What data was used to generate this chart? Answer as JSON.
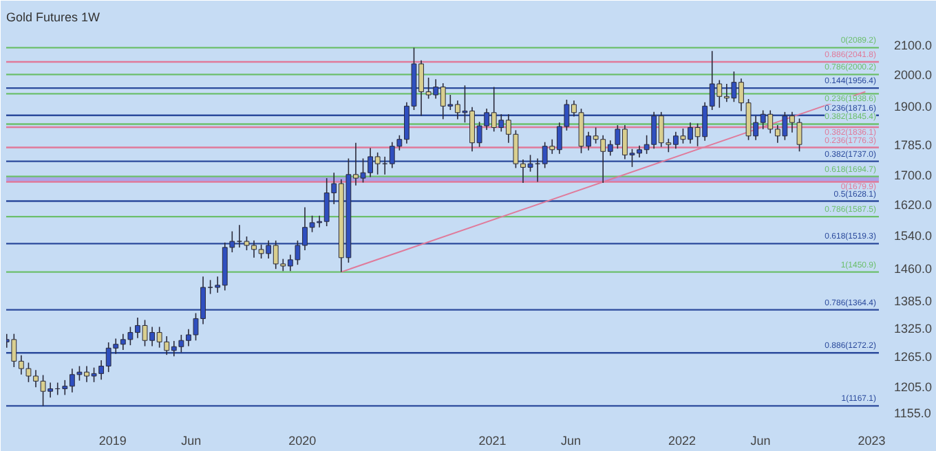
{
  "chart_data": {
    "type": "candlestick",
    "title": "Gold Futures 1W",
    "x": [
      "2018-06-11",
      "2018-06-25",
      "2018-07-09",
      "2018-07-23",
      "2018-08-06",
      "2018-08-20",
      "2018-09-03",
      "2018-09-17",
      "2018-10-01",
      "2018-10-15",
      "2018-10-29",
      "2018-11-12",
      "2018-11-26",
      "2018-12-10",
      "2018-12-24",
      "2019-01-07",
      "2019-01-21",
      "2019-02-04",
      "2019-02-18",
      "2019-03-04",
      "2019-03-18",
      "2019-04-01",
      "2019-04-15",
      "2019-04-29",
      "2019-05-13",
      "2019-05-27",
      "2019-06-10",
      "2019-06-24",
      "2019-07-08",
      "2019-07-22",
      "2019-08-05",
      "2019-08-19",
      "2019-09-02",
      "2019-09-16",
      "2019-09-30",
      "2019-10-14",
      "2019-10-28",
      "2019-11-11",
      "2019-11-25",
      "2019-12-09",
      "2019-12-23",
      "2020-01-06",
      "2020-01-20",
      "2020-02-03",
      "2020-02-17",
      "2020-03-02",
      "2020-03-16",
      "2020-03-30",
      "2020-04-13",
      "2020-04-27",
      "2020-05-11",
      "2020-05-25",
      "2020-06-08",
      "2020-06-22",
      "2020-07-06",
      "2020-07-20",
      "2020-08-03",
      "2020-08-17",
      "2020-08-31",
      "2020-09-14",
      "2020-09-28",
      "2020-10-12",
      "2020-10-26",
      "2020-11-09",
      "2020-11-23",
      "2020-12-07",
      "2020-12-21",
      "2021-01-04",
      "2021-01-18",
      "2021-02-01",
      "2021-02-15",
      "2021-03-01",
      "2021-03-15",
      "2021-03-29",
      "2021-04-12",
      "2021-04-26",
      "2021-05-10",
      "2021-05-24",
      "2021-06-07",
      "2021-06-21",
      "2021-07-05",
      "2021-07-19",
      "2021-08-02",
      "2021-08-16",
      "2021-08-30",
      "2021-09-13",
      "2021-09-27",
      "2021-10-11",
      "2021-10-25",
      "2021-11-08",
      "2021-11-22",
      "2021-12-06",
      "2021-12-20",
      "2022-01-03",
      "2022-01-17",
      "2022-01-31",
      "2022-02-14",
      "2022-02-28",
      "2022-03-14",
      "2022-03-28",
      "2022-04-11",
      "2022-04-25",
      "2022-05-09",
      "2022-05-23",
      "2022-06-06",
      "2022-06-20",
      "2022-07-04",
      "2022-07-18",
      "2022-08-01",
      "2022-08-15"
    ],
    "ohlc": [
      [
        1295,
        1312,
        1283,
        1300
      ],
      [
        1300,
        1312,
        1243,
        1255
      ],
      [
        1255,
        1267,
        1228,
        1240
      ],
      [
        1240,
        1252,
        1213,
        1225
      ],
      [
        1225,
        1237,
        1203,
        1215
      ],
      [
        1215,
        1227,
        1167.1,
        1195
      ],
      [
        1195,
        1212,
        1183,
        1200
      ],
      [
        1200,
        1212,
        1188,
        1200
      ],
      [
        1200,
        1217,
        1188,
        1205
      ],
      [
        1205,
        1240,
        1193,
        1228
      ],
      [
        1228,
        1245,
        1216,
        1233
      ],
      [
        1233,
        1245,
        1213,
        1225
      ],
      [
        1225,
        1242,
        1213,
        1230
      ],
      [
        1230,
        1257,
        1218,
        1245
      ],
      [
        1245,
        1294,
        1233,
        1282
      ],
      [
        1282,
        1302,
        1270,
        1290
      ],
      [
        1290,
        1312,
        1278,
        1300
      ],
      [
        1300,
        1327,
        1288,
        1315
      ],
      [
        1315,
        1347,
        1303,
        1330
      ],
      [
        1330,
        1342,
        1286,
        1298
      ],
      [
        1298,
        1327,
        1286,
        1315
      ],
      [
        1315,
        1327,
        1283,
        1295
      ],
      [
        1295,
        1307,
        1268,
        1277
      ],
      [
        1277,
        1297,
        1265,
        1285
      ],
      [
        1285,
        1310,
        1273,
        1298
      ],
      [
        1298,
        1322,
        1286,
        1310
      ],
      [
        1310,
        1357,
        1298,
        1345
      ],
      [
        1345,
        1440,
        1333,
        1415
      ],
      [
        1415,
        1432,
        1400,
        1415
      ],
      [
        1415,
        1440,
        1403,
        1420
      ],
      [
        1420,
        1522,
        1408,
        1510
      ],
      [
        1510,
        1550,
        1498,
        1525
      ],
      [
        1525,
        1566,
        1510,
        1525
      ],
      [
        1525,
        1537,
        1503,
        1515
      ],
      [
        1515,
        1527,
        1485,
        1505
      ],
      [
        1505,
        1517,
        1483,
        1495
      ],
      [
        1495,
        1527,
        1483,
        1515
      ],
      [
        1515,
        1527,
        1458,
        1470
      ],
      [
        1470,
        1482,
        1453,
        1465
      ],
      [
        1465,
        1492,
        1453,
        1480
      ],
      [
        1480,
        1527,
        1468,
        1515
      ],
      [
        1515,
        1612,
        1503,
        1560
      ],
      [
        1560,
        1590,
        1548,
        1572
      ],
      [
        1572,
        1590,
        1560,
        1575
      ],
      [
        1575,
        1690,
        1563,
        1650
      ],
      [
        1650,
        1705,
        1620,
        1675
      ],
      [
        1675,
        1687,
        1450.9,
        1485
      ],
      [
        1485,
        1745,
        1473,
        1700
      ],
      [
        1700,
        1790,
        1670,
        1690
      ],
      [
        1690,
        1745,
        1678,
        1705
      ],
      [
        1705,
        1775,
        1693,
        1750
      ],
      [
        1750,
        1762,
        1700,
        1730
      ],
      [
        1730,
        1750,
        1700,
        1730
      ],
      [
        1730,
        1792,
        1718,
        1780
      ],
      [
        1780,
        1812,
        1768,
        1800
      ],
      [
        1800,
        1912,
        1788,
        1900
      ],
      [
        1900,
        2089.2,
        1888,
        2035
      ],
      [
        2035,
        2047,
        1870,
        1945
      ],
      [
        1945,
        1990,
        1923,
        1935
      ],
      [
        1935,
        1985,
        1923,
        1960
      ],
      [
        1960,
        1972,
        1860,
        1900
      ],
      [
        1900,
        1935,
        1888,
        1905
      ],
      [
        1905,
        1917,
        1860,
        1880
      ],
      [
        1880,
        1965,
        1850,
        1885
      ],
      [
        1885,
        1897,
        1765,
        1790
      ],
      [
        1790,
        1852,
        1778,
        1840
      ],
      [
        1840,
        1892,
        1828,
        1880
      ],
      [
        1880,
        1960,
        1823,
        1835
      ],
      [
        1835,
        1875,
        1823,
        1857
      ],
      [
        1857,
        1875,
        1790,
        1815
      ],
      [
        1815,
        1827,
        1718,
        1730
      ],
      [
        1730,
        1742,
        1676.9,
        1720
      ],
      [
        1720,
        1755,
        1708,
        1730
      ],
      [
        1730,
        1745,
        1680,
        1730
      ],
      [
        1730,
        1792,
        1718,
        1780
      ],
      [
        1780,
        1800,
        1758,
        1770
      ],
      [
        1770,
        1850,
        1758,
        1838
      ],
      [
        1838,
        1920,
        1826,
        1905
      ],
      [
        1905,
        1917,
        1868,
        1880
      ],
      [
        1880,
        1892,
        1760,
        1780
      ],
      [
        1780,
        1822,
        1768,
        1810
      ],
      [
        1810,
        1835,
        1788,
        1800
      ],
      [
        1800,
        1812,
        1677,
        1765
      ],
      [
        1765,
        1797,
        1753,
        1785
      ],
      [
        1785,
        1842,
        1773,
        1830
      ],
      [
        1830,
        1842,
        1743,
        1755
      ],
      [
        1755,
        1772,
        1721,
        1760
      ],
      [
        1760,
        1782,
        1748,
        1770
      ],
      [
        1770,
        1812,
        1758,
        1785
      ],
      [
        1785,
        1882,
        1773,
        1870
      ],
      [
        1870,
        1882,
        1778,
        1790
      ],
      [
        1790,
        1802,
        1763,
        1785
      ],
      [
        1785,
        1822,
        1773,
        1810
      ],
      [
        1810,
        1832,
        1788,
        1800
      ],
      [
        1800,
        1850,
        1788,
        1835
      ],
      [
        1835,
        1847,
        1780,
        1808
      ],
      [
        1808,
        1912,
        1796,
        1900
      ],
      [
        1900,
        2078,
        1888,
        1970
      ],
      [
        1970,
        1982,
        1895,
        1930
      ],
      [
        1930,
        1970,
        1913,
        1925
      ],
      [
        1925,
        2010,
        1913,
        1975
      ],
      [
        1975,
        1987,
        1885,
        1910
      ],
      [
        1910,
        1922,
        1798,
        1810
      ],
      [
        1810,
        1870,
        1798,
        1850
      ],
      [
        1850,
        1887,
        1830,
        1875
      ],
      [
        1875,
        1887,
        1818,
        1830
      ],
      [
        1830,
        1842,
        1790,
        1810
      ],
      [
        1810,
        1882,
        1798,
        1870
      ],
      [
        1870,
        1882,
        1820,
        1850
      ],
      [
        1850,
        1862,
        1765,
        1785
      ]
    ],
    "series": [
      {
        "type": "line",
        "color": "#e07a9a",
        "x": [
          "2020-03-16",
          "2022-12-20"
        ],
        "values": [
          1450.9,
          1945
        ]
      }
    ],
    "log": true,
    "xlim": [
      "2018-06-10",
      "2023-01-15"
    ],
    "xticks": [
      {
        "value": "2019-01-01",
        "label": "2019"
      },
      {
        "value": "2019-06-01",
        "label": "Jun"
      },
      {
        "value": "2020-01-01",
        "label": "2020"
      },
      {
        "value": "2021-01-01",
        "label": "2021"
      },
      {
        "value": "2021-06-01",
        "label": "Jun"
      },
      {
        "value": "2022-01-01",
        "label": "2022"
      },
      {
        "value": "2022-06-01",
        "label": "Jun"
      },
      {
        "value": "2023-01-01",
        "label": "2023"
      }
    ],
    "ylim": [
      1143,
      2147
    ],
    "yticks": [
      {
        "value": 1155,
        "label": "1155.0"
      },
      {
        "value": 1205,
        "label": "1205.0"
      },
      {
        "value": 1265,
        "label": "1265.0"
      },
      {
        "value": 1325,
        "label": "1325.0"
      },
      {
        "value": 1385,
        "label": "1385.0"
      },
      {
        "value": 1460,
        "label": "1460.0"
      },
      {
        "value": 1540,
        "label": "1540.0"
      },
      {
        "value": 1620,
        "label": "1620.0"
      },
      {
        "value": 1700,
        "label": "1700.0"
      },
      {
        "value": 1785,
        "label": "1785.0"
      },
      {
        "value": 1900,
        "label": "1900.0"
      },
      {
        "value": 2000,
        "label": "2000.0"
      },
      {
        "value": 2100,
        "label": "2100.0"
      }
    ],
    "ref_lines": [
      {
        "axis": "y",
        "value": 2089.2,
        "label": "0(2089.2)",
        "color": "#6cbf6c"
      },
      {
        "axis": "y",
        "value": 2041.8,
        "label": "0.886(2041.8)",
        "color": "#e07a9a"
      },
      {
        "axis": "y",
        "value": 2000.2,
        "label": "0.786(2000.2)",
        "color": "#6cbf6c"
      },
      {
        "axis": "y",
        "value": 1956.4,
        "label": "0.144(1956.4)",
        "color": "#2b4a9c"
      },
      {
        "axis": "y",
        "value": 1938.6,
        "label": "0.236(1938.6)",
        "color": "#6cbf6c"
      },
      {
        "axis": "y",
        "value": 1871.6,
        "label": "0.236(1871.6)",
        "color": "#2b4a9c"
      },
      {
        "axis": "y",
        "value": 1845.4,
        "label": "0.382(1845.4)",
        "color": "#6cbf6c"
      },
      {
        "axis": "y",
        "value": 1836.1,
        "label": "0.382(1836.1)",
        "color": "#e07a9a"
      },
      {
        "axis": "y",
        "value": 1776.3,
        "label": "0.236(1776.3)",
        "color": "#e07a9a"
      },
      {
        "axis": "y",
        "value": 1737.0,
        "label": "0.382(1737.0)",
        "color": "#2b4a9c"
      },
      {
        "axis": "y",
        "value": 1694.7,
        "label": "0.618(1694.7)",
        "color": "#6cbf6c"
      },
      {
        "axis": "y",
        "value": 1679.9,
        "label": "0(1679.9)",
        "color": "#e07a9a"
      },
      {
        "axis": "y",
        "value": 1628.1,
        "label": "0.5(1628.1)",
        "color": "#2b4a9c"
      },
      {
        "axis": "y",
        "value": 1587.5,
        "label": "0.786(1587.5)",
        "color": "#6cbf6c"
      },
      {
        "axis": "y",
        "value": 1519.3,
        "label": "0.618(1519.3)",
        "color": "#2b4a9c"
      },
      {
        "axis": "y",
        "value": 1450.9,
        "label": "1(1450.9)",
        "color": "#6cbf6c"
      },
      {
        "axis": "y",
        "value": 1364.4,
        "label": "0.786(1364.4)",
        "color": "#2b4a9c"
      },
      {
        "axis": "y",
        "value": 1272.2,
        "label": "0.886(1272.2)",
        "color": "#2b4a9c"
      },
      {
        "axis": "y",
        "value": 1167.1,
        "label": "1(1167.1)",
        "color": "#2b4a9c"
      }
    ],
    "bands": [
      {
        "axis": "y",
        "from": 1679.9,
        "to": 1694.7,
        "color": "#a597e6"
      }
    ]
  }
}
